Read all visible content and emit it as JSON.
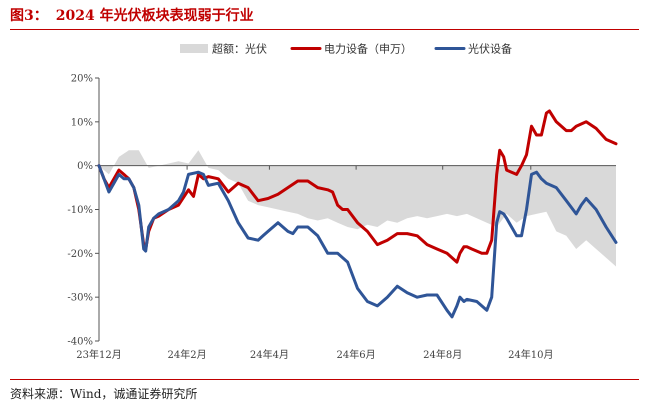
{
  "header": {
    "figure_number": "图3：",
    "title": "2024 年光伏板块表现弱于行业"
  },
  "footer": {
    "source": "资料来源：Wind，诚通证券研究所"
  },
  "colors": {
    "accent": "#c00000",
    "excess": "#d9d9d9",
    "power": "#c00000",
    "pv": "#2f5597"
  },
  "chart_data": {
    "type": "line",
    "title": "",
    "xlabel": "",
    "ylabel": "",
    "ylim": [
      -40,
      20
    ],
    "yticks": [
      20,
      10,
      0,
      -10,
      -20,
      -30,
      -40
    ],
    "ytick_labels": [
      "20%",
      "10%",
      "0%",
      "-10%",
      "-20%",
      "-30%",
      "-40%"
    ],
    "xlim": [
      0,
      52
    ],
    "xticks": [
      {
        "x": 0,
        "label": "23年12月"
      },
      {
        "x": 8.86,
        "label": "24年2月"
      },
      {
        "x": 17.14,
        "label": "24年4月"
      },
      {
        "x": 25.86,
        "label": "24年6月"
      },
      {
        "x": 34.57,
        "label": "24年8月"
      },
      {
        "x": 43.43,
        "label": "24年10月"
      }
    ],
    "legend": {
      "position": "top",
      "order": [
        "超额：光伏",
        "电力设备（申万）",
        "光伏设备"
      ]
    },
    "grid": false,
    "series": [
      {
        "name": "超额：光伏",
        "kind": "area",
        "points": [
          [
            0,
            0
          ],
          [
            1,
            -2
          ],
          [
            2,
            2
          ],
          [
            3,
            3.5
          ],
          [
            4,
            3.5
          ],
          [
            5,
            -0.5
          ],
          [
            6,
            0
          ],
          [
            7,
            0.5
          ],
          [
            8,
            1
          ],
          [
            9,
            0.5
          ],
          [
            10,
            3.5
          ],
          [
            11,
            -0.5
          ],
          [
            12,
            -1
          ],
          [
            13,
            -3
          ],
          [
            14,
            -4
          ],
          [
            15,
            -8
          ],
          [
            16,
            -9
          ],
          [
            17,
            -9.5
          ],
          [
            18,
            -10
          ],
          [
            19,
            -10.5
          ],
          [
            20,
            -11
          ],
          [
            21,
            -12
          ],
          [
            22,
            -12.5
          ],
          [
            23,
            -12
          ],
          [
            24,
            -13
          ],
          [
            25,
            -14
          ],
          [
            26,
            -14.5
          ],
          [
            27,
            -13.5
          ],
          [
            28,
            -14
          ],
          [
            29,
            -12.5
          ],
          [
            30,
            -13
          ],
          [
            31,
            -12
          ],
          [
            32,
            -11.5
          ],
          [
            33,
            -12
          ],
          [
            34,
            -11.5
          ],
          [
            35,
            -11
          ],
          [
            36,
            -11.5
          ],
          [
            37,
            -11
          ],
          [
            38,
            -12
          ],
          [
            39,
            -13
          ],
          [
            40,
            -14
          ],
          [
            41,
            -11
          ],
          [
            42,
            -13
          ],
          [
            43,
            -11.5
          ],
          [
            44,
            -11
          ],
          [
            45,
            -10.5
          ],
          [
            46,
            -15
          ],
          [
            47,
            -16
          ],
          [
            48,
            -19
          ],
          [
            49,
            -17
          ],
          [
            50,
            -19
          ],
          [
            51,
            -21
          ],
          [
            52,
            -23
          ]
        ]
      },
      {
        "name": "电力设备（申万）",
        "kind": "line",
        "points": [
          [
            0,
            0
          ],
          [
            0.5,
            -3
          ],
          [
            1,
            -5
          ],
          [
            2,
            -1
          ],
          [
            2.5,
            -2
          ],
          [
            3,
            -3
          ],
          [
            3.5,
            -5
          ],
          [
            4,
            -10
          ],
          [
            4.5,
            -18
          ],
          [
            4.7,
            -19
          ],
          [
            5,
            -15
          ],
          [
            5.5,
            -12
          ],
          [
            6,
            -11.5
          ],
          [
            7,
            -10
          ],
          [
            8,
            -9
          ],
          [
            9,
            -5.5
          ],
          [
            9.5,
            -7
          ],
          [
            10,
            -2
          ],
          [
            10.5,
            -3
          ],
          [
            11,
            -2.5
          ],
          [
            12,
            -3
          ],
          [
            13,
            -6
          ],
          [
            14,
            -4
          ],
          [
            15,
            -5
          ],
          [
            16,
            -8
          ],
          [
            17,
            -7.5
          ],
          [
            18,
            -6.5
          ],
          [
            19,
            -5
          ],
          [
            20,
            -3.5
          ],
          [
            21,
            -3.5
          ],
          [
            22,
            -5
          ],
          [
            23,
            -5.5
          ],
          [
            23.5,
            -6
          ],
          [
            24,
            -9
          ],
          [
            24.5,
            -10
          ],
          [
            25,
            -10
          ],
          [
            26,
            -13
          ],
          [
            27,
            -15
          ],
          [
            28,
            -18
          ],
          [
            29,
            -17
          ],
          [
            30,
            -15.5
          ],
          [
            31,
            -15.5
          ],
          [
            32,
            -16
          ],
          [
            33,
            -18
          ],
          [
            34,
            -19
          ],
          [
            35,
            -20
          ],
          [
            35.5,
            -21
          ],
          [
            36,
            -22
          ],
          [
            36.3,
            -20
          ],
          [
            36.7,
            -18.5
          ],
          [
            37,
            -18.5
          ],
          [
            37.5,
            -19
          ],
          [
            38,
            -19.5
          ],
          [
            38.5,
            -20
          ],
          [
            39,
            -20
          ],
          [
            39.5,
            -17
          ],
          [
            40,
            -2
          ],
          [
            40.3,
            3.5
          ],
          [
            40.7,
            2
          ],
          [
            41,
            -1
          ],
          [
            42,
            -2
          ],
          [
            42.5,
            0
          ],
          [
            43,
            2.5
          ],
          [
            43.5,
            9
          ],
          [
            44,
            7
          ],
          [
            44.5,
            7
          ],
          [
            45,
            12
          ],
          [
            45.3,
            12.5
          ],
          [
            46,
            10
          ],
          [
            47,
            8
          ],
          [
            47.5,
            8
          ],
          [
            48,
            9
          ],
          [
            49,
            10
          ],
          [
            50,
            8.5
          ],
          [
            51,
            6
          ],
          [
            52,
            5
          ]
        ]
      },
      {
        "name": "光伏设备",
        "kind": "line",
        "points": [
          [
            0,
            0
          ],
          [
            0.5,
            -3
          ],
          [
            1,
            -6
          ],
          [
            1.5,
            -4
          ],
          [
            2,
            -2
          ],
          [
            2.5,
            -3
          ],
          [
            3,
            -3
          ],
          [
            3.5,
            -5
          ],
          [
            4,
            -9
          ],
          [
            4.5,
            -19
          ],
          [
            4.7,
            -19.5
          ],
          [
            5,
            -14
          ],
          [
            5.5,
            -12
          ],
          [
            6,
            -11
          ],
          [
            7,
            -10
          ],
          [
            8,
            -8
          ],
          [
            8.5,
            -6
          ],
          [
            9,
            -2
          ],
          [
            10,
            -1.5
          ],
          [
            10.5,
            -2
          ],
          [
            11,
            -4.5
          ],
          [
            12,
            -4
          ],
          [
            13,
            -8
          ],
          [
            14,
            -13
          ],
          [
            15,
            -16.5
          ],
          [
            16,
            -17
          ],
          [
            16.5,
            -16
          ],
          [
            17,
            -15
          ],
          [
            18,
            -13
          ],
          [
            19,
            -15
          ],
          [
            19.5,
            -15.5
          ],
          [
            20,
            -14
          ],
          [
            21,
            -14
          ],
          [
            22,
            -16
          ],
          [
            23,
            -20
          ],
          [
            24,
            -20
          ],
          [
            25,
            -22
          ],
          [
            26,
            -28
          ],
          [
            27,
            -31
          ],
          [
            28,
            -32
          ],
          [
            29,
            -30
          ],
          [
            30,
            -27.5
          ],
          [
            31,
            -29
          ],
          [
            32,
            -30
          ],
          [
            33,
            -29.5
          ],
          [
            34,
            -29.5
          ],
          [
            35,
            -33
          ],
          [
            35.5,
            -34.5
          ],
          [
            36,
            -32
          ],
          [
            36.3,
            -30
          ],
          [
            36.7,
            -31
          ],
          [
            37,
            -30.5
          ],
          [
            38,
            -31
          ],
          [
            39,
            -33
          ],
          [
            39.5,
            -30
          ],
          [
            40,
            -13
          ],
          [
            40.3,
            -10.5
          ],
          [
            40.7,
            -11
          ],
          [
            41,
            -12
          ],
          [
            42,
            -16
          ],
          [
            42.5,
            -16
          ],
          [
            43,
            -10
          ],
          [
            43.5,
            -2
          ],
          [
            44,
            -1.5
          ],
          [
            44.5,
            -3
          ],
          [
            45,
            -4
          ],
          [
            46,
            -5
          ],
          [
            47,
            -8
          ],
          [
            48,
            -11
          ],
          [
            48.5,
            -9
          ],
          [
            49,
            -7.5
          ],
          [
            50,
            -10
          ],
          [
            51,
            -14
          ],
          [
            52,
            -17.5
          ]
        ]
      }
    ]
  }
}
